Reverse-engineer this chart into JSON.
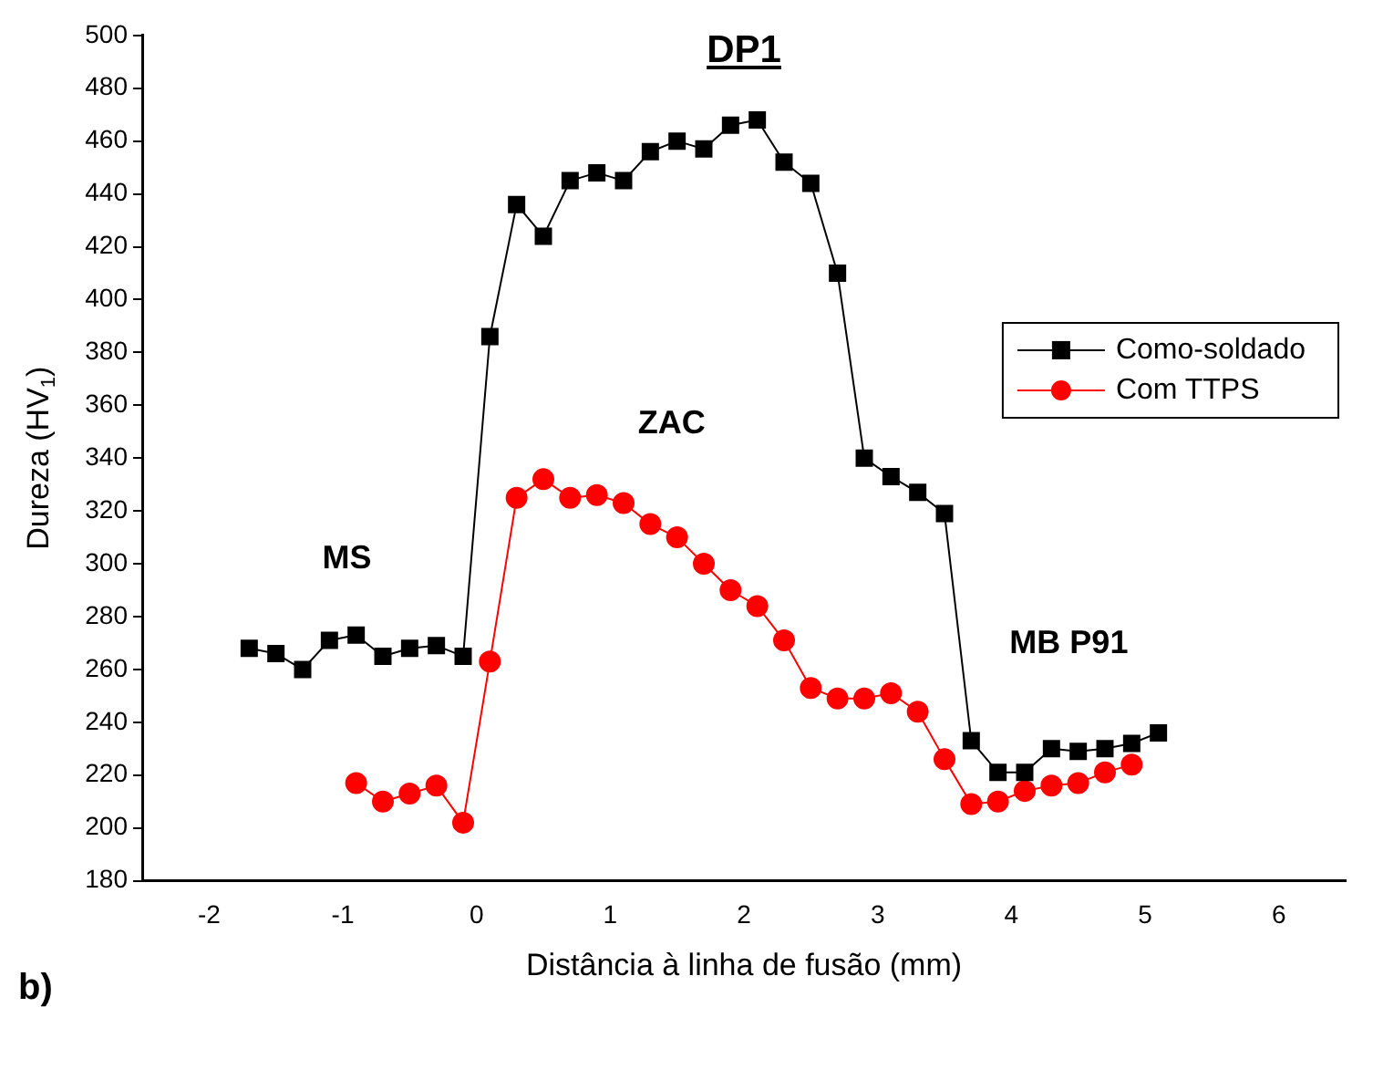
{
  "chart_data": {
    "type": "line",
    "title": "DP1",
    "xlabel": "Distância à linha de fusão (mm)",
    "ylabel": "Dureza (HV$_{1}$)",
    "xlim": [
      -2.5,
      6.5
    ],
    "xticks": [
      -2,
      -1,
      0,
      1,
      2,
      3,
      4,
      5,
      6
    ],
    "ylim": [
      180,
      500
    ],
    "yticks": [
      180,
      200,
      220,
      240,
      260,
      280,
      300,
      320,
      340,
      360,
      380,
      400,
      420,
      440,
      460,
      480,
      500
    ],
    "grid": false,
    "legend": "top right",
    "line_style": "solid",
    "series": [
      {
        "name": "Como-soldado",
        "color": "#000000",
        "marker": "square",
        "x": [
          -1.7,
          -1.5,
          -1.3,
          -1.1,
          -0.9,
          -0.7,
          -0.5,
          -0.3,
          -0.1,
          0.1,
          0.3,
          0.5,
          0.7,
          0.9,
          1.1,
          1.3,
          1.5,
          1.7,
          1.9,
          2.1,
          2.3,
          2.5,
          2.7,
          2.9,
          3.1,
          3.3,
          3.5,
          3.7,
          3.9,
          4.1,
          4.3,
          4.5,
          4.7,
          4.9,
          5.1
        ],
        "values": [
          268,
          266,
          260,
          271,
          273,
          265,
          268,
          269,
          265,
          386,
          436,
          424,
          445,
          448,
          445,
          456,
          460,
          457,
          466,
          468,
          452,
          444,
          410,
          340,
          333,
          327,
          319,
          233,
          221,
          221,
          230,
          229,
          230,
          232,
          236
        ]
      },
      {
        "name": "Com TTPS",
        "color": "#ff0000",
        "marker": "circle",
        "x": [
          -0.9,
          -0.7,
          -0.5,
          -0.3,
          -0.1,
          0.1,
          0.3,
          0.5,
          0.7,
          0.9,
          1.1,
          1.3,
          1.5,
          1.7,
          1.9,
          2.1,
          2.3,
          2.5,
          2.7,
          2.9,
          3.1,
          3.3,
          3.5,
          3.7,
          3.9,
          4.1,
          4.3,
          4.5,
          4.7,
          4.9
        ],
        "values": [
          217,
          210,
          213,
          216,
          202,
          263,
          325,
          332,
          325,
          326,
          323,
          315,
          310,
          300,
          290,
          284,
          271,
          253,
          249,
          249,
          251,
          244,
          226,
          209,
          210,
          214,
          216,
          217,
          221,
          224
        ]
      }
    ],
    "annotations": [
      "MS",
      "ZAC",
      "MB P91",
      "b)"
    ]
  }
}
